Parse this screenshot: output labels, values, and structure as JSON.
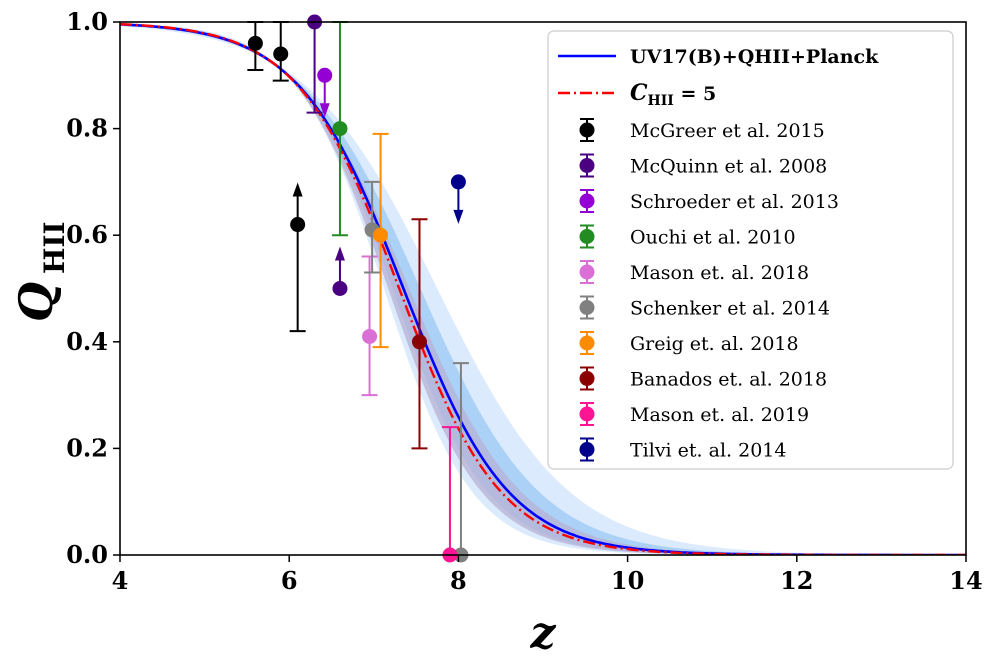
{
  "chart_data": {
    "type": "scatter",
    "xlabel": "z",
    "ylabel_main": "Q",
    "ylabel_sub": "HII",
    "xlim": [
      4,
      14
    ],
    "ylim": [
      0,
      1
    ],
    "xticks": [
      "4",
      "6",
      "8",
      "10",
      "12",
      "14"
    ],
    "yticks": [
      "0.0",
      "0.2",
      "0.4",
      "0.6",
      "0.8",
      "1.0"
    ],
    "grid": false,
    "legend_position": "top-right",
    "curves": [
      {
        "label": "UV17(B)+QHII+Planck",
        "color": "#0000ff",
        "style": "solid",
        "z_half": 7.35,
        "width": 0.62
      },
      {
        "label_main": "C",
        "label_sub": "HII",
        "label_rest": " = 5",
        "color": "#ff0000",
        "style": "dashdot",
        "z_half": 7.3,
        "width": 0.6
      }
    ],
    "bands": [
      {
        "color": "#cfe3fb",
        "z_half_lo": 7.12,
        "z_half_hi": 7.75,
        "w_lo": 0.52,
        "w_hi": 0.78
      },
      {
        "color": "#9cc8f5",
        "z_half_lo": 7.22,
        "z_half_hi": 7.55,
        "w_lo": 0.56,
        "w_hi": 0.7
      },
      {
        "color": "#b7b2d4",
        "z_half_lo": 7.17,
        "z_half_hi": 7.42,
        "w_lo": 0.55,
        "w_hi": 0.66
      }
    ],
    "series": [
      {
        "name": "McGreer et al. 2015",
        "color": "#000000",
        "points": [
          {
            "x": 5.6,
            "y": 0.96,
            "err_lo": 0.05,
            "err_hi": 0.04
          },
          {
            "x": 5.9,
            "y": 0.94,
            "err_lo": 0.05,
            "err_hi": 0.06
          },
          {
            "x": 6.1,
            "y": 0.62,
            "err_lo": 0.2,
            "err_hi": 0,
            "limit": "lower"
          }
        ]
      },
      {
        "name": "McQuinn et al. 2008",
        "color": "#4b0082",
        "points": [
          {
            "x": 6.3,
            "y": 1.0,
            "err_lo": 0.17,
            "err_hi": 0
          },
          {
            "x": 6.6,
            "y": 0.5,
            "err_lo": 0,
            "err_hi": 0,
            "limit": "lower"
          }
        ]
      },
      {
        "name": "Schroeder et al. 2013",
        "color": "#9400d3",
        "points": [
          {
            "x": 6.42,
            "y": 0.9,
            "err_lo": 0,
            "err_hi": 0,
            "limit": "upper"
          }
        ]
      },
      {
        "name": "Ouchi et al. 2010",
        "color": "#228b22",
        "points": [
          {
            "x": 6.6,
            "y": 0.8,
            "err_lo": 0.2,
            "err_hi": 0.2
          }
        ]
      },
      {
        "name": "Mason et. al. 2018",
        "color": "#da70d6",
        "points": [
          {
            "x": 6.95,
            "y": 0.41,
            "err_lo": 0.11,
            "err_hi": 0.15
          }
        ]
      },
      {
        "name": "Schenker et al. 2014",
        "color": "#808080",
        "points": [
          {
            "x": 6.98,
            "y": 0.61,
            "err_lo": 0.08,
            "err_hi": 0.09
          },
          {
            "x": 8.03,
            "y": 0.0,
            "err_lo": 0,
            "err_hi": 0.36
          }
        ]
      },
      {
        "name": "Greig et. al. 2018",
        "color": "#ff8c00",
        "points": [
          {
            "x": 7.08,
            "y": 0.6,
            "err_lo": 0.21,
            "err_hi": 0.19
          }
        ]
      },
      {
        "name": "Banados et. al. 2018",
        "color": "#8b0000",
        "points": [
          {
            "x": 7.54,
            "y": 0.4,
            "err_lo": 0.2,
            "err_hi": 0.23
          }
        ]
      },
      {
        "name": "Mason et. al. 2019",
        "color": "#ff1493",
        "points": [
          {
            "x": 7.9,
            "y": 0.0,
            "err_lo": 0,
            "err_hi": 0.24
          }
        ]
      },
      {
        "name": "Tilvi et. al. 2014",
        "color": "#00008b",
        "points": [
          {
            "x": 8.0,
            "y": 0.7,
            "err_lo": 0,
            "err_hi": 0,
            "limit": "upper"
          }
        ]
      }
    ]
  }
}
